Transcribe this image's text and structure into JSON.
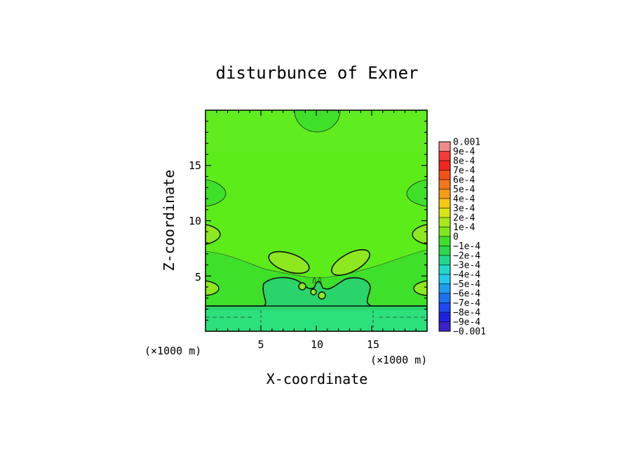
{
  "chart_data": {
    "type": "heatmap",
    "title": "disturbunce of Exner",
    "xlabel": "X-coordinate",
    "ylabel": "Z-coordinate",
    "x_unit_note": "(×1000 m)",
    "z_unit_note": "(×1000 m)",
    "xlim": [
      0,
      20
    ],
    "zlim": [
      0,
      20
    ],
    "x_ticks": [
      5,
      10,
      15
    ],
    "z_ticks": [
      5,
      10,
      15
    ],
    "x_tick_labels": [
      "5",
      "10",
      "15"
    ],
    "z_tick_labels": [
      "5",
      "10",
      "15"
    ],
    "colorbar": {
      "labels": [
        "0.001",
        "9e-4",
        "8e-4",
        "7e-4",
        "6e-4",
        "5e-4",
        "4e-4",
        "3e-4",
        "2e-4",
        "1e-4",
        "0",
        "−1e-4",
        "−2e-4",
        "−3e-4",
        "−4e-4",
        "−5e-4",
        "−6e-4",
        "−7e-4",
        "−8e-4",
        "−9e-4",
        "−0.001"
      ],
      "colors": [
        "#f08a8a",
        "#f43a3a",
        "#f2261e",
        "#f2501a",
        "#f2781a",
        "#f59c12",
        "#f5c814",
        "#d8e414",
        "#a6e81c",
        "#7ee81a",
        "#3ee02a",
        "#2ad84a",
        "#22d88c",
        "#22d8c8",
        "#22c8ee",
        "#1e9cf0",
        "#1e72f0",
        "#1e48f0",
        "#1e22e0",
        "#3a22c8"
      ]
    },
    "regions": [
      {
        "name": "background-positive",
        "value": "0 to 1e-4",
        "color": "#5cec1a"
      },
      {
        "name": "upper-negative",
        "value": "0 to -1e-4",
        "color": "#3ee02a"
      },
      {
        "name": "lower-negative-layer",
        "value": "-1e-4 to -2e-4",
        "color": "#2ce07c"
      },
      {
        "name": "lobes-positive",
        "value": "1e-4 to 2e-4",
        "color": "#8ee820"
      },
      {
        "name": "dip-region",
        "value": "-1e-4 to -2e-4",
        "color": "#2ad46a"
      }
    ]
  }
}
